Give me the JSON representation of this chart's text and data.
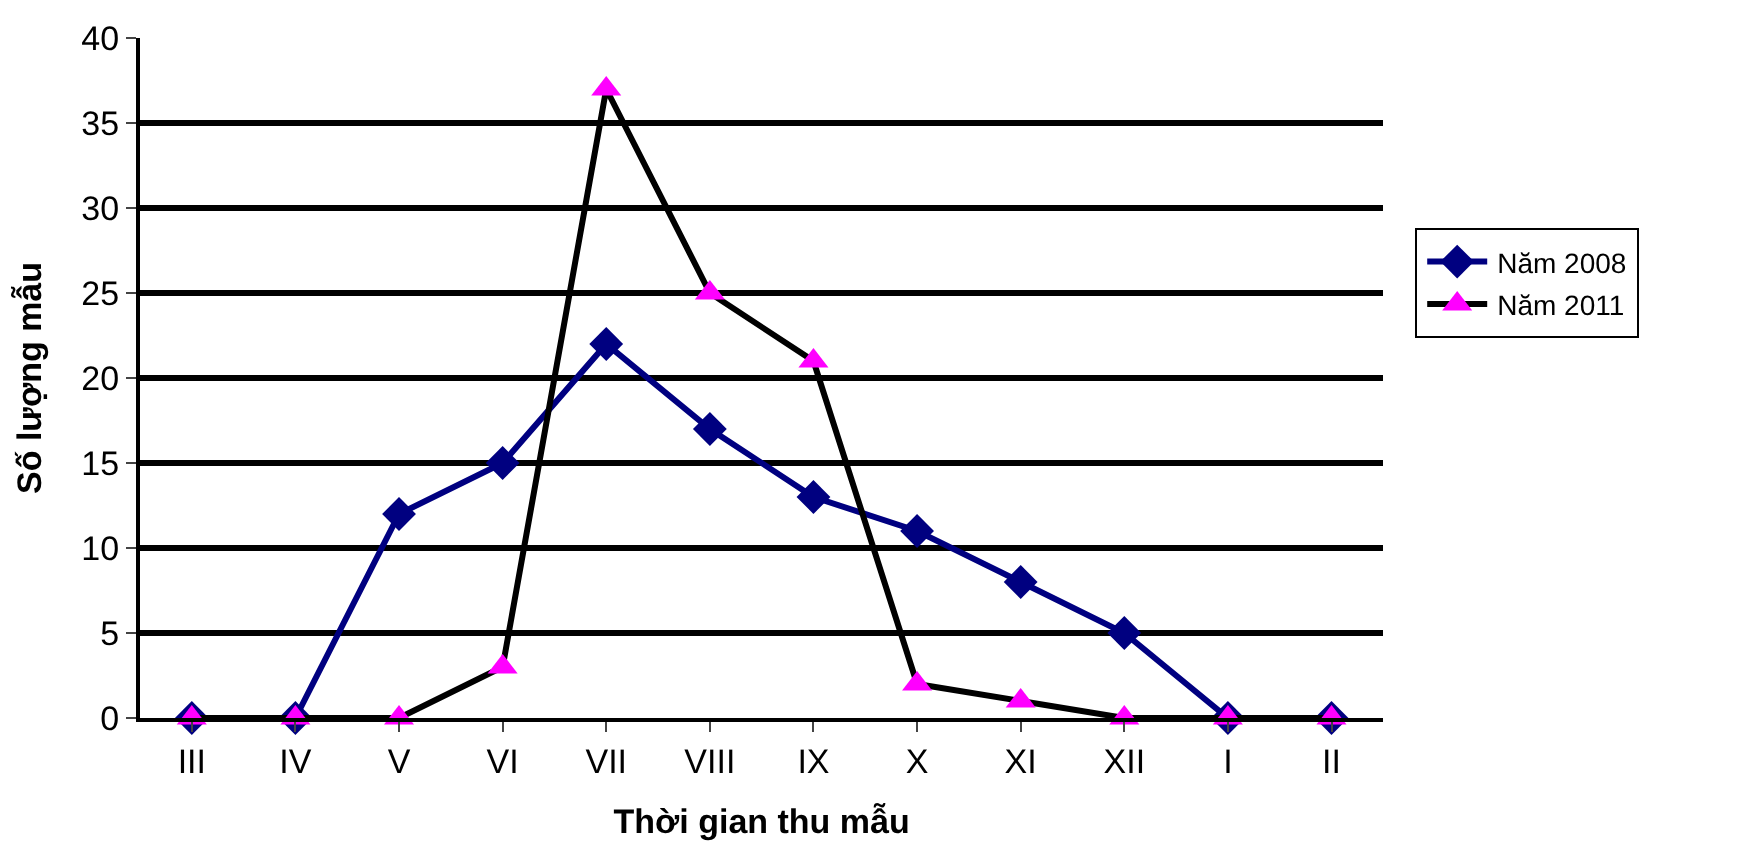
{
  "chart_data": {
    "type": "line",
    "xlabel": "Thời gian thu mẫu",
    "ylabel": "Số lượng mẫu",
    "categories": [
      "III",
      "IV",
      "V",
      "VI",
      "VII",
      "VIII",
      "IX",
      "X",
      "XI",
      "XII",
      "I",
      "II"
    ],
    "series": [
      {
        "name": "Năm 2008",
        "color": "#000080",
        "marker": "diamond",
        "values": [
          0,
          0,
          12,
          15,
          22,
          17,
          13,
          11,
          8,
          5,
          0,
          0
        ]
      },
      {
        "name": "Năm 2011",
        "color": "#000000",
        "marker": "triangle",
        "colors": [
          "#ff00ff",
          "#ff00ff",
          "#ff00ff",
          "#ff00ff",
          "#ff00ff",
          "#ff00ff",
          "#ff00ff",
          "#ff00ff",
          "#ff00ff",
          "#ff00ff",
          "#ff00ff",
          "#ff00ff"
        ],
        "values": [
          0,
          0,
          0,
          3,
          37,
          25,
          21,
          2,
          1,
          0,
          0,
          0
        ]
      }
    ],
    "ylim": [
      0,
      40
    ],
    "yticks": [
      0,
      5,
      10,
      15,
      20,
      25,
      30,
      35,
      40
    ],
    "grid": "y",
    "legend": "right"
  }
}
